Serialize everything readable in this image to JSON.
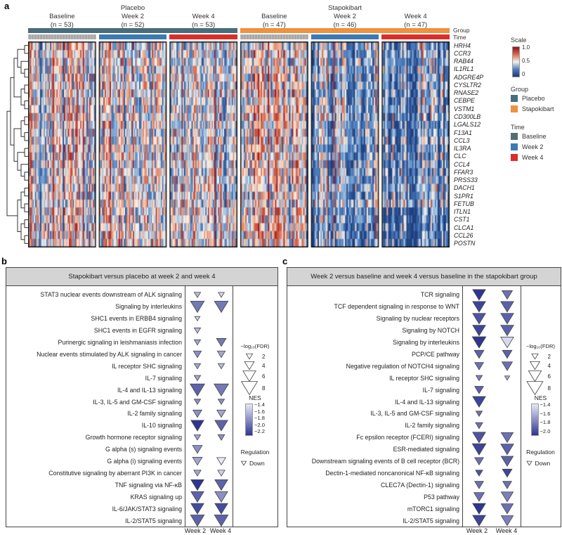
{
  "panel_labels": {
    "a": "a",
    "b": "b",
    "c": "c"
  },
  "heatmap_header": {
    "group_titles": [
      {
        "label": "Placebo"
      },
      {
        "label": "Stapokibart"
      }
    ],
    "annotation_row_labels": {
      "group": "Group",
      "time": "Time"
    }
  },
  "colors": {
    "placebo": "#4a6d7c",
    "stapokibart": "#ef913e",
    "baseline_bar": "#a9a9a9",
    "week2": "#3c7ab3",
    "week4": "#d92f2b",
    "baseline_legend": "#546e74",
    "heat_low": "#1c3a7a",
    "heat_mid": "#f4f1ec",
    "heat_high": "#901020",
    "nes_light": "#e7e8f6",
    "nes_dark": "#2e3691"
  },
  "scale_legend": {
    "title": "Scale",
    "ticks": [
      "1.0",
      "0.5",
      "0"
    ]
  },
  "group_legend": {
    "title": "Group",
    "items": [
      {
        "label": "Placebo",
        "color": "#4a6d7c"
      },
      {
        "label": "Stapokibart",
        "color": "#ef913e"
      }
    ]
  },
  "time_legend": {
    "title": "Time",
    "items": [
      {
        "label": "Baseline",
        "color": "#546e74"
      },
      {
        "label": "Week 2",
        "color": "#3c7ab3"
      },
      {
        "label": "Week 4",
        "color": "#d92f2b"
      }
    ]
  },
  "chart_data": [
    {
      "id": "panel_a_heatmap",
      "type": "heatmap",
      "genes": [
        "HRH4",
        "CCR3",
        "RAB44",
        "IL1RL1",
        "ADGRE4P",
        "CYSLTR2",
        "RNASE2",
        "CEBPE",
        "VSTM1",
        "CD300LB",
        "LGALS12",
        "F13A1",
        "CCL3",
        "IL3RA",
        "CLC",
        "CCL4",
        "FFAR3",
        "PRSS33",
        "DACH1",
        "S1PR1",
        "FETUB",
        "ITLN1",
        "CST1",
        "CLCA1",
        "CCL26",
        "POSTN"
      ],
      "column_groups": [
        {
          "group": "Placebo",
          "time": "Baseline",
          "n": 53,
          "n_label": "(n = 53)"
        },
        {
          "group": "Placebo",
          "time": "Week 2",
          "n": 52,
          "n_label": "(n = 52)"
        },
        {
          "group": "Placebo",
          "time": "Week 4",
          "n": 53,
          "n_label": "(n = 53)"
        },
        {
          "group": "Stapokibart",
          "time": "Baseline",
          "n": 47,
          "n_label": "(n = 47)"
        },
        {
          "group": "Stapokibart",
          "time": "Week 2",
          "n": 46,
          "n_label": "(n = 46)"
        },
        {
          "group": "Stapokibart",
          "time": "Week 4",
          "n": 47,
          "n_label": "(n = 47)"
        }
      ],
      "scale": {
        "min": 0,
        "mid": 0.5,
        "max": 1
      },
      "block_gene_means": [
        [
          0.5,
          0.52,
          0.46,
          0.52,
          0.34,
          0.3
        ],
        [
          0.52,
          0.5,
          0.48,
          0.55,
          0.32,
          0.3
        ],
        [
          0.5,
          0.52,
          0.47,
          0.54,
          0.33,
          0.31
        ],
        [
          0.51,
          0.5,
          0.46,
          0.53,
          0.35,
          0.32
        ],
        [
          0.5,
          0.51,
          0.48,
          0.52,
          0.34,
          0.3
        ],
        [
          0.52,
          0.5,
          0.47,
          0.54,
          0.33,
          0.31
        ],
        [
          0.5,
          0.52,
          0.48,
          0.55,
          0.32,
          0.3
        ],
        [
          0.51,
          0.5,
          0.46,
          0.53,
          0.34,
          0.32
        ],
        [
          0.5,
          0.51,
          0.47,
          0.52,
          0.33,
          0.3
        ],
        [
          0.52,
          0.5,
          0.48,
          0.54,
          0.32,
          0.31
        ],
        [
          0.5,
          0.52,
          0.46,
          0.53,
          0.34,
          0.3
        ],
        [
          0.51,
          0.5,
          0.47,
          0.55,
          0.33,
          0.31
        ],
        [
          0.5,
          0.51,
          0.48,
          0.52,
          0.35,
          0.32
        ],
        [
          0.52,
          0.5,
          0.46,
          0.54,
          0.33,
          0.3
        ],
        [
          0.5,
          0.52,
          0.47,
          0.53,
          0.32,
          0.31
        ],
        [
          0.51,
          0.5,
          0.48,
          0.52,
          0.34,
          0.3
        ],
        [
          0.5,
          0.51,
          0.46,
          0.54,
          0.33,
          0.31
        ],
        [
          0.52,
          0.5,
          0.47,
          0.55,
          0.32,
          0.3
        ],
        [
          0.5,
          0.52,
          0.48,
          0.53,
          0.36,
          0.34
        ],
        [
          0.51,
          0.5,
          0.46,
          0.52,
          0.35,
          0.33
        ],
        [
          0.5,
          0.51,
          0.47,
          0.54,
          0.4,
          0.42
        ],
        [
          0.54,
          0.53,
          0.5,
          0.57,
          0.24,
          0.22
        ],
        [
          0.55,
          0.54,
          0.51,
          0.58,
          0.23,
          0.21
        ],
        [
          0.54,
          0.53,
          0.5,
          0.57,
          0.24,
          0.22
        ],
        [
          0.55,
          0.54,
          0.51,
          0.58,
          0.23,
          0.21
        ],
        [
          0.54,
          0.53,
          0.5,
          0.57,
          0.24,
          0.22
        ]
      ]
    },
    {
      "id": "panel_b",
      "type": "scatter",
      "marker": "down-triangle",
      "title": "Stapokibart versus placebo at week 2 and week 4",
      "x_categories": [
        "Week 2",
        "Week 4"
      ],
      "size_encoding": "-log10(FDR)",
      "color_encoding": "NES",
      "nes_range": [
        -1.4,
        -2.2
      ],
      "legend": {
        "fdr_title": "−log₁₀(FDR)",
        "fdr_sizes": [
          2,
          4,
          6,
          8
        ],
        "nes_title": "NES",
        "nes_ticks": [
          "−1.4",
          "−1.6",
          "−1.8",
          "−2.0",
          "−2.2"
        ],
        "regulation_title": "Regulation",
        "regulation_label": "Down"
      },
      "pathways": [
        {
          "name": "STAT3 nuclear events downstream of ALK signaling",
          "week2": {
            "fdr": 2,
            "nes": -1.6
          },
          "week4": {
            "fdr": 1.8,
            "nes": -1.5
          }
        },
        {
          "name": "Signaling by interleukins",
          "week2": {
            "fdr": 6.5,
            "nes": -1.9
          },
          "week4": {
            "fdr": 6.5,
            "nes": -1.9
          }
        },
        {
          "name": "SHC1 events in ERBB4 signaling",
          "week2": {
            "fdr": 1.3,
            "nes": -1.5
          },
          "week4": null
        },
        {
          "name": "SHC1 events in EGFR signaling",
          "week2": {
            "fdr": 2,
            "nes": -1.6
          },
          "week4": null
        },
        {
          "name": "Purinergic signaling in leishmaniasis infection",
          "week2": {
            "fdr": 2,
            "nes": -1.7
          },
          "week4": {
            "fdr": 4,
            "nes": -1.9
          }
        },
        {
          "name": "Nuclear events stimulated by ALK signaling in cancer",
          "week2": {
            "fdr": 3,
            "nes": -1.8
          },
          "week4": {
            "fdr": 3,
            "nes": -1.7
          }
        },
        {
          "name": "IL receptor SHC signaling",
          "week2": {
            "fdr": 2,
            "nes": -1.7
          },
          "week4": {
            "fdr": 2,
            "nes": -1.6
          }
        },
        {
          "name": "IL-7 signaling",
          "week2": {
            "fdr": 2,
            "nes": -1.7
          },
          "week4": null
        },
        {
          "name": "IL-4 and IL-13 signaling",
          "week2": {
            "fdr": 7,
            "nes": -2.0
          },
          "week4": {
            "fdr": 7,
            "nes": -1.9
          }
        },
        {
          "name": "IL-3, IL-5 and GM-CSF signaling",
          "week2": {
            "fdr": 2,
            "nes": -1.8
          },
          "week4": {
            "fdr": 2,
            "nes": -1.8
          }
        },
        {
          "name": "IL-2 family signaling",
          "week2": {
            "fdr": 3.5,
            "nes": -1.8
          },
          "week4": {
            "fdr": 3.5,
            "nes": -1.7
          }
        },
        {
          "name": "IL-10 signaling",
          "week2": {
            "fdr": 6,
            "nes": -2.2
          },
          "week4": {
            "fdr": 6,
            "nes": -2.0
          }
        },
        {
          "name": "Growth hormone receptor signaling",
          "week2": {
            "fdr": 2,
            "nes": -1.7
          },
          "week4": {
            "fdr": 2.2,
            "nes": -1.8
          }
        },
        {
          "name": "G alpha (s) signaling events",
          "week2": {
            "fdr": 4,
            "nes": -1.8
          },
          "week4": null
        },
        {
          "name": "G alpha (i) signaling events",
          "week2": {
            "fdr": 4,
            "nes": -1.7
          },
          "week4": {
            "fdr": 3.5,
            "nes": -1.4
          }
        },
        {
          "name": "Constitutive signaling by aberrant PI3K in cancer",
          "week2": {
            "fdr": 2.5,
            "nes": -1.7
          },
          "week4": {
            "fdr": 2.5,
            "nes": -1.5
          }
        },
        {
          "name": "TNF signaling via NF-κB",
          "week2": {
            "fdr": 6,
            "nes": -2.2
          },
          "week4": {
            "fdr": 6,
            "nes": -2.0
          }
        },
        {
          "name": "KRAS signaling up",
          "week2": {
            "fdr": 6,
            "nes": -2.0
          },
          "week4": {
            "fdr": 6,
            "nes": -1.8
          }
        },
        {
          "name": "IL-6/JAK/STAT3 signaling",
          "week2": {
            "fdr": 6,
            "nes": -2.1
          },
          "week4": {
            "fdr": 6,
            "nes": -2.1
          }
        },
        {
          "name": "IL-2/STAT5 signaling",
          "week2": {
            "fdr": 6.5,
            "nes": -2.0
          },
          "week4": {
            "fdr": 6.5,
            "nes": -2.0
          }
        }
      ]
    },
    {
      "id": "panel_c",
      "type": "scatter",
      "marker": "down-triangle",
      "title": "Week 2 versus baseline and week 4 versus baseline in the stapokibart group",
      "x_categories": [
        "Week 2",
        "Week 4"
      ],
      "size_encoding": "-log10(FDR)",
      "color_encoding": "NES",
      "nes_range": [
        -1.4,
        -2.0
      ],
      "legend": {
        "fdr_title": "−log₁₀(FDR)",
        "fdr_sizes": [
          2,
          4,
          6,
          8
        ],
        "nes_title": "NES",
        "nes_ticks": [
          "−1.4",
          "−1.6",
          "−1.8",
          "−2.0"
        ],
        "regulation_title": "Regulation",
        "regulation_label": "Down"
      },
      "pathways": [
        {
          "name": "TCR signaling",
          "week2": {
            "fdr": 6,
            "nes": -2.0
          },
          "week4": {
            "fdr": 4.5,
            "nes": -1.8
          }
        },
        {
          "name": "TCF dependent signaling in response to WNT",
          "week2": {
            "fdr": 6,
            "nes": -1.95
          },
          "week4": {
            "fdr": 6,
            "nes": -1.85
          }
        },
        {
          "name": "Signaling by nuclear receptors",
          "week2": {
            "fdr": 6,
            "nes": -1.9
          },
          "week4": {
            "fdr": 6,
            "nes": -1.85
          }
        },
        {
          "name": "Signaling by NOTCH",
          "week2": {
            "fdr": 6,
            "nes": -1.95
          },
          "week4": {
            "fdr": 6,
            "nes": -1.85
          }
        },
        {
          "name": "Signaling by interleukins",
          "week2": {
            "fdr": 6.5,
            "nes": -2.0
          },
          "week4": {
            "fdr": 6,
            "nes": -1.45
          }
        },
        {
          "name": "PCP/CE pathway",
          "week2": {
            "fdr": 4,
            "nes": -1.85
          },
          "week4": {
            "fdr": 4,
            "nes": -1.85
          }
        },
        {
          "name": "Negative regulation of NOTCH4 signaling",
          "week2": {
            "fdr": 3.5,
            "nes": -1.8
          },
          "week4": {
            "fdr": 4.5,
            "nes": -1.8
          }
        },
        {
          "name": "IL receptor SHC signaling",
          "week2": {
            "fdr": 2,
            "nes": -1.75
          },
          "week4": {
            "fdr": 1.2,
            "nes": -1.6
          }
        },
        {
          "name": "IL-7 signaling",
          "week2": {
            "fdr": 3.5,
            "nes": -1.85
          },
          "week4": null
        },
        {
          "name": "IL-4 and IL-13 signaling",
          "week2": {
            "fdr": 6,
            "nes": -1.95
          },
          "week4": null
        },
        {
          "name": "IL-3, IL-5 and GM-CSF signaling",
          "week2": {
            "fdr": 2,
            "nes": -1.8
          },
          "week4": null
        },
        {
          "name": "IL-2 family signaling",
          "week2": {
            "fdr": 2.5,
            "nes": -1.8
          },
          "week4": null
        },
        {
          "name": "Fc epsilon receptor (FCERI) signaling",
          "week2": {
            "fdr": 6,
            "nes": -1.9
          },
          "week4": {
            "fdr": 5.5,
            "nes": -1.8
          }
        },
        {
          "name": "ESR-mediated signaling",
          "week2": {
            "fdr": 6.5,
            "nes": -1.95
          },
          "week4": {
            "fdr": 6,
            "nes": -1.85
          }
        },
        {
          "name": "Downstream signaling events of B cell receptor (BCR)",
          "week2": {
            "fdr": 3.5,
            "nes": -1.8
          },
          "week4": {
            "fdr": 5.5,
            "nes": -1.85
          }
        },
        {
          "name": "Dectin-1-mediated noncanonical NF-κB signaling",
          "week2": {
            "fdr": 2.5,
            "nes": -1.9
          },
          "week4": {
            "fdr": 4,
            "nes": -1.95
          }
        },
        {
          "name": "CLEC7A (Dectin-1) signaling",
          "week2": {
            "fdr": 3.5,
            "nes": -1.8
          },
          "week4": {
            "fdr": 3.5,
            "nes": -1.8
          }
        },
        {
          "name": "P53 pathway",
          "week2": {
            "fdr": 4.5,
            "nes": -1.8
          },
          "week4": {
            "fdr": 5.5,
            "nes": -1.75
          }
        },
        {
          "name": "mTORC1 signaling",
          "week2": {
            "fdr": 6,
            "nes": -2.05
          },
          "week4": {
            "fdr": 5.5,
            "nes": -1.8
          }
        },
        {
          "name": "IL-2/STAT5 signaling",
          "week2": {
            "fdr": 6,
            "nes": -1.95
          },
          "week4": {
            "fdr": 5.5,
            "nes": -1.75
          }
        }
      ]
    }
  ]
}
